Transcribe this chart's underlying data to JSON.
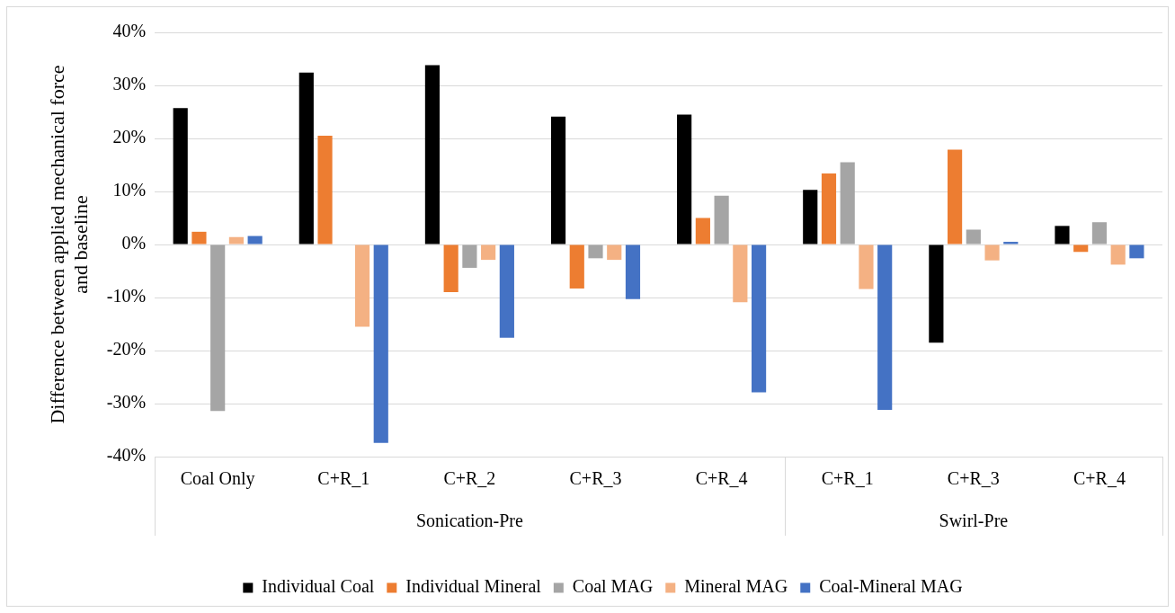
{
  "chart_data": {
    "type": "bar",
    "ylabel": "Difference between applied mechanical force and baseline",
    "categories": [
      "Coal Only",
      "C+R_1",
      "C+R_2",
      "C+R_3",
      "C+R_4",
      "C+R_1",
      "C+R_3",
      "C+R_4"
    ],
    "series": [
      {
        "name": "Individual Coal",
        "color": "#000000",
        "values": [
          25.7,
          32.4,
          33.8,
          24.1,
          24.5,
          10.3,
          -18.5,
          3.5
        ]
      },
      {
        "name": "Individual Mineral",
        "color": "#ed7d31",
        "values": [
          2.4,
          20.5,
          -9.0,
          -8.3,
          5.0,
          13.4,
          17.9,
          -1.4
        ]
      },
      {
        "name": "Coal MAG",
        "color": "#a5a5a5",
        "values": [
          -31.4,
          0,
          -4.4,
          -2.6,
          9.2,
          15.5,
          2.8,
          4.2
        ]
      },
      {
        "name": "Mineral MAG",
        "color": "#f4b183",
        "values": [
          1.4,
          -15.5,
          -2.9,
          -2.9,
          -10.9,
          -8.4,
          -3.0,
          -3.8
        ]
      },
      {
        "name": "Coal-Mineral MAG",
        "color": "#4472c4",
        "values": [
          1.6,
          -37.4,
          -17.6,
          -10.3,
          -27.9,
          -31.2,
          0.5,
          -2.6
        ]
      }
    ],
    "annotations": [
      "Sonication-Pre",
      "Swirl-Pre"
    ],
    "ylim": [
      -40,
      40
    ],
    "yticks": [
      {
        "value": -40,
        "label": "-40%"
      },
      {
        "value": -30,
        "label": "-30%"
      },
      {
        "value": -20,
        "label": "-20%"
      },
      {
        "value": -10,
        "label": "-10%"
      },
      {
        "value": 0,
        "label": "0%"
      },
      {
        "value": 10,
        "label": "10%"
      },
      {
        "value": 20,
        "label": "20%"
      },
      {
        "value": 30,
        "label": "30%"
      },
      {
        "value": 40,
        "label": "40%"
      }
    ],
    "grid": "y",
    "legend": "bottom"
  }
}
